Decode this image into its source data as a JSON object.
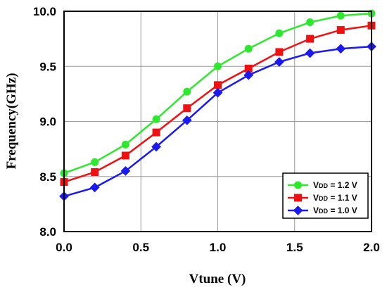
{
  "chart_data": {
    "type": "line",
    "xlabel": "Vtune (V)",
    "ylabel": "Frequency(GHz)",
    "xlim": [
      0.0,
      2.0
    ],
    "ylim": [
      8.0,
      10.0
    ],
    "x_ticks": [
      "0.0",
      "0.5",
      "1.0",
      "1.5",
      "2.0"
    ],
    "y_ticks": [
      "8.0",
      "8.5",
      "9.0",
      "9.5",
      "10.0"
    ],
    "grid": true,
    "legend_position": "bottom-right",
    "x": [
      0.0,
      0.2,
      0.4,
      0.6,
      0.8,
      1.0,
      1.2,
      1.4,
      1.6,
      1.8,
      2.0
    ],
    "series": [
      {
        "legend": {
          "v": "V",
          "sub": "DD",
          "rest": " = 1.2 V"
        },
        "color": "#2ee82e",
        "marker": "circle",
        "values": [
          8.53,
          8.63,
          8.79,
          9.02,
          9.27,
          9.5,
          9.66,
          9.8,
          9.9,
          9.96,
          9.98
        ]
      },
      {
        "legend": {
          "v": "V",
          "sub": "DD",
          "rest": " = 1.1 V"
        },
        "color": "#ee1111",
        "marker": "square",
        "values": [
          8.45,
          8.54,
          8.69,
          8.9,
          9.12,
          9.33,
          9.48,
          9.63,
          9.75,
          9.83,
          9.87
        ]
      },
      {
        "legend": {
          "v": "V",
          "sub": "DD",
          "rest": " = 1.0 V"
        },
        "color": "#1a1aee",
        "marker": "diamond",
        "values": [
          8.32,
          8.4,
          8.55,
          8.77,
          9.01,
          9.26,
          9.42,
          9.54,
          9.62,
          9.66,
          9.68
        ]
      }
    ]
  }
}
